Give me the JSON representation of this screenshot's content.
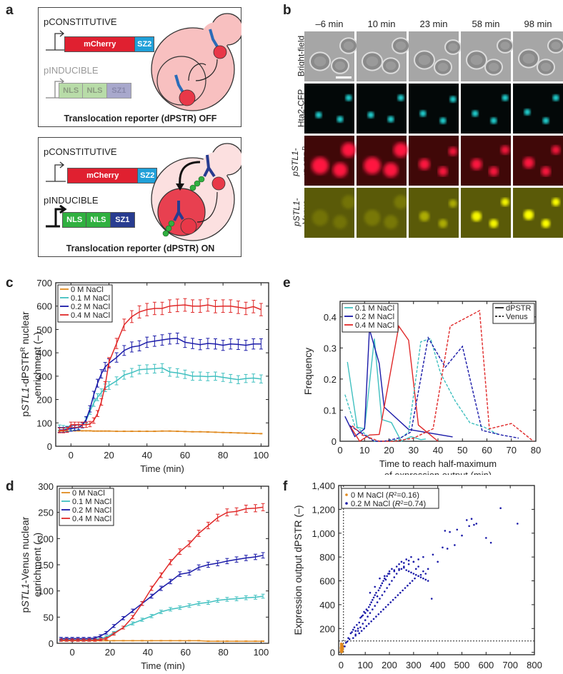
{
  "panels": {
    "a": {
      "label": "a",
      "off": {
        "promoter_constitutive": "pCONSTITUTIVE",
        "gene_constitutive": [
          "mCherry",
          "SZ2"
        ],
        "promoter_inducible": "pINDUCIBLE",
        "gene_inducible": [
          "NLS",
          "NLS",
          "SZ1"
        ],
        "caption": "Translocation reporter (dPSTR) OFF"
      },
      "on": {
        "promoter_constitutive": "pCONSTITUTIVE",
        "gene_constitutive": [
          "mCherry",
          "SZ2"
        ],
        "promoter_inducible": "pINDUCIBLE",
        "gene_inducible": [
          "NLS",
          "NLS",
          "SZ1"
        ],
        "caption": "Translocation reporter (dPSTR) ON"
      },
      "colors": {
        "mcherry": "#e02030",
        "sz2": "#20a0d8",
        "nls_off": "#b8dca8",
        "sz1_off": "#a8a8cc",
        "nls_on": "#30b040",
        "sz1_on": "#283c90",
        "cell_off": "#f8c0c0",
        "cell_on": "#fce0e0",
        "nucleus_on": "#e84050"
      }
    },
    "b": {
      "label": "b",
      "timepoints": [
        "–6 min",
        "10 min",
        "23 min",
        "58 min",
        "98 min"
      ],
      "rows": [
        {
          "label": "Bright-field",
          "sup": "",
          "italic_prefix": ""
        },
        {
          "label": "Hta2-CFP",
          "sup": "",
          "italic_prefix": ""
        },
        {
          "label": "dPSTR",
          "sup": "R",
          "italic_prefix": "pSTL1-"
        },
        {
          "label": "Venus",
          "sup": "",
          "italic_prefix": "pSTL1-"
        }
      ]
    }
  },
  "chart_data": [
    {
      "panel": "c",
      "type": "line",
      "ylabel": "pSTL1-dPSTR^R nuclear enrichment (–)",
      "xlabel": "Time (min)",
      "xlim": [
        -8,
        104
      ],
      "ylim": [
        0,
        700
      ],
      "xticks": [
        0,
        20,
        40,
        60,
        80,
        100
      ],
      "yticks": [
        0,
        100,
        200,
        300,
        400,
        500,
        600,
        700
      ],
      "legend": "top-left",
      "error_bars": true,
      "x": [
        -6,
        -4,
        -2,
        0,
        2,
        4,
        6,
        8,
        10,
        12,
        14,
        16,
        18,
        20,
        24,
        28,
        32,
        36,
        40,
        44,
        48,
        52,
        56,
        60,
        64,
        68,
        72,
        76,
        80,
        84,
        88,
        92,
        96,
        100
      ],
      "series": [
        {
          "name": "0 M NaCl",
          "color": "#e08a20",
          "values": [
            65,
            65,
            65,
            66,
            66,
            66,
            66,
            66,
            66,
            65,
            65,
            65,
            65,
            65,
            64,
            64,
            64,
            64,
            64,
            64,
            65,
            65,
            64,
            63,
            62,
            62,
            61,
            60,
            59,
            58,
            57,
            56,
            55,
            54
          ]
        },
        {
          "name": "0.1 M NaCl",
          "color": "#40c0c0",
          "values": [
            80,
            78,
            75,
            78,
            80,
            82,
            90,
            110,
            150,
            185,
            210,
            230,
            250,
            260,
            280,
            305,
            315,
            328,
            330,
            332,
            335,
            318,
            314,
            308,
            300,
            300,
            298,
            300,
            295,
            290,
            285,
            290,
            292,
            288
          ]
        },
        {
          "name": "0.2 M NaCl",
          "color": "#1a1aa8",
          "values": [
            70,
            70,
            72,
            75,
            78,
            80,
            90,
            115,
            160,
            220,
            270,
            310,
            340,
            355,
            380,
            410,
            425,
            430,
            445,
            450,
            455,
            460,
            462,
            445,
            440,
            435,
            440,
            438,
            432,
            438,
            436,
            432,
            438,
            438
          ]
        },
        {
          "name": "0.4 M NaCl",
          "color": "#e02828",
          "values": [
            68,
            68,
            70,
            92,
            92,
            92,
            92,
            92,
            95,
            110,
            140,
            190,
            260,
            360,
            440,
            520,
            555,
            575,
            585,
            590,
            590,
            600,
            603,
            605,
            600,
            600,
            605,
            598,
            600,
            600,
            595,
            590,
            598,
            585
          ]
        }
      ]
    },
    {
      "panel": "d",
      "type": "line",
      "ylabel": "pSTL1-Venus nuclear enrichment (–)",
      "xlabel": "Time (min)",
      "xlim": [
        -8,
        104
      ],
      "ylim": [
        0,
        300
      ],
      "xticks": [
        0,
        20,
        40,
        60,
        80,
        100
      ],
      "yticks": [
        0,
        50,
        100,
        150,
        200,
        250,
        300
      ],
      "legend": "top-left",
      "error_bars": true,
      "x": [
        -6,
        -3,
        0,
        3,
        6,
        9,
        12,
        15,
        18,
        22,
        27,
        32,
        37,
        42,
        47,
        52,
        57,
        62,
        67,
        72,
        77,
        82,
        87,
        92,
        97,
        101
      ],
      "series": [
        {
          "name": "0 M NaCl",
          "color": "#e08a20",
          "values": [
            5,
            5,
            5,
            5,
            5,
            5,
            5,
            5,
            5,
            5,
            5,
            5,
            5,
            5,
            5,
            5,
            5,
            5,
            5,
            4,
            4,
            4,
            4,
            4,
            4,
            4
          ]
        },
        {
          "name": "0.1 M NaCl",
          "color": "#40c0c0",
          "values": [
            7,
            7,
            7,
            7,
            7,
            7,
            8,
            9,
            12,
            20,
            30,
            38,
            45,
            52,
            60,
            65,
            68,
            72,
            76,
            78,
            82,
            84,
            85,
            87,
            88,
            90
          ]
        },
        {
          "name": "0.2 M NaCl",
          "color": "#1a1aa8",
          "values": [
            9,
            9,
            9,
            9,
            9,
            9,
            10,
            14,
            20,
            33,
            48,
            62,
            76,
            90,
            105,
            118,
            132,
            135,
            145,
            150,
            153,
            157,
            160,
            163,
            165,
            168
          ]
        },
        {
          "name": "0.4 M NaCl",
          "color": "#e02828",
          "values": [
            6,
            6,
            6,
            6,
            6,
            6,
            6,
            7,
            9,
            18,
            30,
            50,
            76,
            105,
            130,
            155,
            175,
            190,
            210,
            225,
            240,
            250,
            252,
            257,
            258,
            260
          ]
        }
      ]
    },
    {
      "panel": "e",
      "type": "line",
      "ylabel": "Frequency",
      "xlabel": "Time to reach half-maximum of expression output (min)",
      "xlim": [
        0,
        80
      ],
      "ylim": [
        0,
        0.45
      ],
      "xticks": [
        0,
        10,
        20,
        30,
        40,
        50,
        60,
        70,
        80
      ],
      "yticks": [
        0,
        0.1,
        0.2,
        0.3,
        0.4
      ],
      "legend": "top-left (series), top-right (line style)",
      "linestyle_legend": [
        {
          "name": "dPSTR",
          "style": "solid"
        },
        {
          "name": "Venus",
          "style": "dashed"
        }
      ],
      "series": [
        {
          "name": "0.1 M NaCl",
          "reporter": "dPSTR",
          "color": "#40c0c0",
          "style": "solid",
          "x": [
            3,
            7,
            10,
            14,
            17,
            21,
            25,
            29,
            33,
            35
          ],
          "values": [
            0.255,
            0.045,
            0.04,
            0.33,
            0.07,
            0.06,
            0.0,
            0.015,
            0.005,
            0.007
          ]
        },
        {
          "name": "0.2 M NaCl",
          "reporter": "dPSTR",
          "color": "#1a1aa8",
          "style": "solid",
          "x": [
            2,
            6,
            10,
            12,
            16,
            18,
            28,
            46
          ],
          "values": [
            0.08,
            0.015,
            0.04,
            0.36,
            0.25,
            0.11,
            0.038,
            0.014
          ]
        },
        {
          "name": "0.4 M NaCl",
          "reporter": "dPSTR",
          "color": "#e02828",
          "style": "solid",
          "x": [
            4,
            8,
            12,
            16,
            24,
            28,
            32,
            40
          ],
          "values": [
            0.05,
            0.0,
            0.02,
            0.022,
            0.37,
            0.325,
            0.052,
            0.0
          ]
        },
        {
          "name": "0.1 M NaCl",
          "reporter": "Venus",
          "color": "#40c0c0",
          "style": "dashed",
          "x": [
            2,
            6,
            14,
            18,
            24,
            28,
            33,
            37,
            41,
            47,
            53,
            59,
            65
          ],
          "values": [
            0.15,
            0.05,
            0.0,
            0.0,
            0.005,
            0.03,
            0.32,
            0.33,
            0.22,
            0.13,
            0.06,
            0.045,
            0.02
          ]
        },
        {
          "name": "0.2 M NaCl",
          "reporter": "Venus",
          "color": "#1a1aa8",
          "style": "dashed",
          "x": [
            4,
            8,
            14,
            18,
            25,
            29,
            36,
            43,
            50,
            58,
            66,
            73
          ],
          "values": [
            0.05,
            0.03,
            0.0,
            0.0,
            0.012,
            0.03,
            0.333,
            0.238,
            0.305,
            0.035,
            0.02,
            0.01
          ]
        },
        {
          "name": "0.4 M NaCl",
          "reporter": "Venus",
          "color": "#e02828",
          "style": "dashed",
          "x": [
            5,
            9,
            16,
            22,
            30,
            38,
            45,
            57,
            61,
            70,
            79
          ],
          "values": [
            0.05,
            0.02,
            0.0,
            0.0,
            0.01,
            0.04,
            0.37,
            0.42,
            0.04,
            0.057,
            0.0
          ]
        }
      ]
    },
    {
      "panel": "f",
      "type": "scatter",
      "ylabel": "Expression output dPSTR (–)",
      "xlabel": "Expression output Venus (–)",
      "xlim": [
        -10,
        800
      ],
      "ylim": [
        -20,
        1400
      ],
      "xticks": [
        0,
        100,
        200,
        300,
        400,
        500,
        600,
        700,
        800
      ],
      "xtick_labels": [
        "0",
        "100",
        "200",
        "300",
        "400",
        "500",
        "600",
        "700",
        "800"
      ],
      "yticks": [
        0,
        200,
        400,
        600,
        800,
        1000,
        1200,
        1400
      ],
      "ytick_labels": [
        "0",
        "200",
        "400",
        "600",
        "800",
        "1,000",
        "1,200",
        "1,400"
      ],
      "legend": "top-left",
      "threshold_lines": {
        "vertical_x": 10,
        "horizontal_y": 95,
        "style": "dotted"
      },
      "series": [
        {
          "name": "0 M NaCl",
          "r2": "0.16",
          "color": "#e08a20",
          "x": [
            0,
            1,
            2,
            3,
            4,
            5,
            2,
            1,
            3,
            4,
            0,
            2,
            5,
            6,
            1,
            3,
            2,
            4
          ],
          "values": [
            10,
            20,
            30,
            40,
            50,
            30,
            60,
            45,
            15,
            25,
            35,
            55,
            20,
            40,
            70,
            5,
            50,
            65
          ]
        },
        {
          "name": "0.2 M NaCl",
          "r2": "0.74",
          "color": "#1a1aa8",
          "x": [
            15,
            20,
            25,
            30,
            35,
            40,
            45,
            50,
            55,
            60,
            65,
            70,
            75,
            80,
            85,
            90,
            95,
            100,
            105,
            110,
            115,
            120,
            125,
            130,
            135,
            140,
            145,
            150,
            155,
            160,
            165,
            170,
            175,
            180,
            185,
            190,
            195,
            200,
            210,
            220,
            230,
            240,
            250,
            260,
            270,
            280,
            290,
            300,
            310,
            320,
            330,
            340,
            350,
            360,
            380,
            400,
            420,
            430,
            440,
            450,
            470,
            480,
            500,
            520,
            530,
            540,
            550,
            560,
            600,
            620,
            660,
            730,
            60,
            70,
            80,
            90,
            100,
            110,
            120,
            130,
            140,
            150,
            160,
            170,
            180,
            190,
            200,
            210,
            220,
            230,
            240,
            250,
            260,
            270,
            280,
            290,
            300,
            310,
            320,
            330,
            340,
            350,
            360,
            375,
            120,
            140,
            160,
            180,
            200,
            220,
            240,
            260,
            280,
            300,
            320,
            340,
            50,
            60,
            75,
            85,
            95,
            105,
            115,
            125,
            135,
            145,
            155,
            165,
            175,
            185,
            195,
            205,
            215,
            225,
            235,
            245,
            255,
            265,
            275,
            285,
            295,
            305
          ],
          "values": [
            50,
            80,
            90,
            120,
            110,
            160,
            170,
            190,
            210,
            180,
            230,
            200,
            250,
            290,
            300,
            310,
            340,
            330,
            360,
            350,
            380,
            400,
            420,
            440,
            460,
            480,
            500,
            470,
            520,
            540,
            560,
            580,
            600,
            620,
            610,
            640,
            660,
            680,
            700,
            690,
            720,
            740,
            760,
            750,
            780,
            770,
            800,
            760,
            700,
            720,
            650,
            680,
            660,
            700,
            820,
            760,
            880,
            1020,
            870,
            1010,
            900,
            1030,
            980,
            1110,
            1060,
            1120,
            1070,
            1080,
            960,
            920,
            1210,
            1080,
            150,
            180,
            210,
            240,
            270,
            300,
            330,
            360,
            390,
            420,
            450,
            480,
            510,
            540,
            570,
            600,
            630,
            660,
            690,
            700,
            710,
            690,
            680,
            670,
            660,
            650,
            640,
            630,
            620,
            610,
            600,
            450,
            500,
            550,
            620,
            640,
            660,
            680,
            700,
            720,
            740,
            760,
            780,
            800,
            120,
            140,
            160,
            180,
            200,
            220,
            240,
            260,
            280,
            300,
            320,
            340,
            360,
            380,
            400,
            420,
            440,
            460,
            480,
            500,
            520,
            540,
            560,
            580,
            600,
            620
          ]
        }
      ]
    }
  ]
}
